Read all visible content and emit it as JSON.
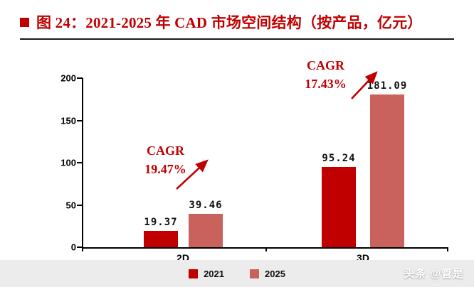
{
  "header": {
    "title": "图 24：2021-2025 年 CAD 市场空间结构（按产品，亿元）"
  },
  "chart_data": {
    "type": "bar",
    "title": "2021-2025 年 CAD 市场空间结构（按产品，亿元）",
    "categories": [
      "2D",
      "3D"
    ],
    "series": [
      {
        "name": "2021",
        "color": "#c00000",
        "values": [
          19.37,
          95.24
        ]
      },
      {
        "name": "2025",
        "color": "#c9625d",
        "values": [
          39.46,
          181.09
        ]
      }
    ],
    "ylim": [
      0,
      200
    ],
    "yticks": [
      0,
      50,
      100,
      150,
      200
    ],
    "grid": false,
    "legend_position": "bottom",
    "annotations": [
      {
        "line1": "CAGR",
        "line2": "19.47%",
        "target": "2D"
      },
      {
        "line1": "CAGR",
        "line2": "17.43%",
        "target": "3D"
      }
    ],
    "accent_color": "#c00000"
  },
  "watermark": {
    "text": "头条 @管是"
  }
}
